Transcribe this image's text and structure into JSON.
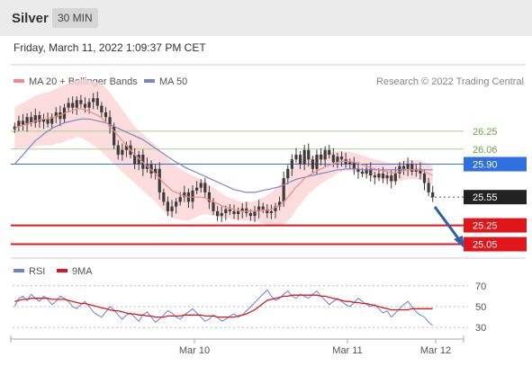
{
  "header": {
    "title": "Silver",
    "interval": "30 MIN"
  },
  "timestamp": "Friday, March 11, 2022 1:09:37 PM CET",
  "credit": "Research © 2022 Trading Central",
  "colors": {
    "candle": "#3c3c3c",
    "ma20": "#f08a8a",
    "bollinger": "#fbd3d3",
    "ma50": "#7a86c8",
    "resistance": "#a8d08a",
    "pivot": "#2f6fe0",
    "support": "#e0161b",
    "last": "#222222",
    "arrow": "#2f5fa8",
    "rsi": "#6a82d6",
    "nine_ma": "#e0161b"
  },
  "chart_data": [
    {
      "type": "candlestick",
      "legend": [
        {
          "key": "ma20",
          "label": "MA 20 + Bollinger Bands"
        },
        {
          "key": "ma50",
          "label": "MA 50"
        }
      ],
      "legend_position": "top-left",
      "ylim": [
        24.95,
        26.65
      ],
      "x_labels": [
        "Mar 10",
        "Mar 11",
        "Mar 12"
      ],
      "levels": [
        {
          "label": "26.25",
          "value": 26.25,
          "type": "resistance"
        },
        {
          "label": "26.06",
          "value": 26.06,
          "type": "resistance"
        },
        {
          "label": "25.90",
          "value": 25.9,
          "type": "pivot"
        },
        {
          "label": "25.55",
          "value": 25.55,
          "type": "last"
        },
        {
          "label": "25.25",
          "value": 25.25,
          "type": "support"
        },
        {
          "label": "25.05",
          "value": 25.05,
          "type": "support"
        }
      ],
      "close": [
        26.3,
        26.36,
        26.32,
        26.4,
        26.34,
        26.42,
        26.35,
        26.38,
        26.33,
        26.4,
        26.45,
        26.38,
        26.5,
        26.55,
        26.5,
        26.58,
        26.54,
        26.5,
        26.56,
        26.6,
        26.52,
        26.45,
        26.4,
        26.3,
        26.1,
        26.0,
        26.05,
        26.1,
        26.0,
        25.9,
        26.0,
        25.85,
        25.9,
        25.8,
        25.85,
        25.6,
        25.5,
        25.4,
        25.45,
        25.5,
        25.55,
        25.6,
        25.5,
        25.62,
        25.65,
        25.7,
        25.6,
        25.5,
        25.4,
        25.35,
        25.38,
        25.42,
        25.4,
        25.37,
        25.4,
        25.43,
        25.38,
        25.35,
        25.4,
        25.45,
        25.42,
        25.38,
        25.4,
        25.45,
        25.5,
        25.75,
        25.85,
        25.95,
        26.0,
        25.9,
        26.05,
        25.95,
        25.85,
        26.0,
        25.95,
        26.05,
        26.0,
        25.92,
        25.98,
        25.95,
        25.9,
        25.92,
        25.85,
        25.82,
        25.8,
        25.85,
        25.78,
        25.76,
        25.8,
        25.75,
        25.78,
        25.72,
        25.8,
        25.88,
        25.85,
        25.9,
        25.82,
        25.85,
        25.8,
        25.7,
        25.6,
        25.55
      ],
      "ma20": [
        26.28,
        26.3,
        26.31,
        26.33,
        26.34,
        26.36,
        26.37,
        26.38,
        26.38,
        26.39,
        26.41,
        26.42,
        26.44,
        26.46,
        26.47,
        26.49,
        26.49,
        26.48,
        26.46,
        26.44,
        26.42,
        26.39,
        26.35,
        26.3,
        26.25,
        26.2,
        26.15,
        26.1,
        26.05,
        26.0,
        25.96,
        25.92,
        25.88,
        25.84,
        25.8,
        25.75,
        25.7,
        25.66,
        25.62,
        25.6,
        25.58,
        25.56,
        25.55,
        25.55,
        25.55,
        25.55,
        25.54,
        25.52,
        25.5,
        25.48,
        25.46,
        25.44,
        25.43,
        25.42,
        25.41,
        25.4,
        25.4,
        25.4,
        25.4,
        25.41,
        25.41,
        25.41,
        25.42,
        25.44,
        25.46,
        25.5,
        25.55,
        25.6,
        25.66,
        25.7,
        25.75,
        25.78,
        25.8,
        25.83,
        25.85,
        25.87,
        25.89,
        25.9,
        25.92,
        25.93,
        25.93,
        25.93,
        25.92,
        25.91,
        25.89,
        25.88,
        25.86,
        25.85,
        25.84,
        25.83,
        25.82,
        25.81,
        25.81,
        25.82,
        25.83,
        25.84,
        25.84,
        25.84,
        25.84,
        25.82,
        25.8,
        25.78
      ],
      "ma50": [
        25.9,
        25.95,
        26.0,
        26.05,
        26.1,
        26.15,
        26.18,
        26.22,
        26.25,
        26.28,
        26.3,
        26.32,
        26.34,
        26.35,
        26.36,
        26.37,
        26.38,
        26.38,
        26.38,
        26.37,
        26.36,
        26.35,
        26.34,
        26.32,
        26.3,
        26.28,
        26.26,
        26.24,
        26.22,
        26.2,
        26.18,
        26.16,
        26.13,
        26.1,
        26.07,
        26.04,
        26.01,
        25.98,
        25.95,
        25.92,
        25.9,
        25.87,
        25.85,
        25.83,
        25.81,
        25.79,
        25.77,
        25.75,
        25.73,
        25.71,
        25.69,
        25.67,
        25.65,
        25.63,
        25.62,
        25.61,
        25.6,
        25.6,
        25.6,
        25.61,
        25.62,
        25.63,
        25.64,
        25.65,
        25.66,
        25.68,
        25.7,
        25.72,
        25.74,
        25.75,
        25.76,
        25.77,
        25.78,
        25.79,
        25.8,
        25.81,
        25.82,
        25.83,
        25.84,
        25.84,
        25.85,
        25.85,
        25.85,
        25.85,
        25.84,
        25.84,
        25.84,
        25.84,
        25.84,
        25.84,
        25.84,
        25.84,
        25.84,
        25.84,
        25.84,
        25.84,
        25.84,
        25.84,
        25.84,
        25.84,
        25.84,
        25.84
      ],
      "band_width": [
        0.22,
        0.23,
        0.24,
        0.25,
        0.26,
        0.27,
        0.27,
        0.28,
        0.28,
        0.29,
        0.29,
        0.3,
        0.3,
        0.3,
        0.3,
        0.3,
        0.31,
        0.32,
        0.33,
        0.34,
        0.35,
        0.36,
        0.36,
        0.36,
        0.35,
        0.34,
        0.33,
        0.32,
        0.31,
        0.3,
        0.3,
        0.3,
        0.3,
        0.3,
        0.3,
        0.3,
        0.3,
        0.3,
        0.29,
        0.28,
        0.27,
        0.26,
        0.25,
        0.23,
        0.21,
        0.19,
        0.17,
        0.16,
        0.15,
        0.14,
        0.13,
        0.12,
        0.11,
        0.11,
        0.1,
        0.1,
        0.1,
        0.1,
        0.11,
        0.12,
        0.14,
        0.16,
        0.18,
        0.2,
        0.22,
        0.24,
        0.25,
        0.25,
        0.24,
        0.23,
        0.22,
        0.2,
        0.18,
        0.17,
        0.16,
        0.15,
        0.14,
        0.13,
        0.12,
        0.11,
        0.1,
        0.1,
        0.1,
        0.1,
        0.1,
        0.1,
        0.1,
        0.1,
        0.1,
        0.1,
        0.1,
        0.1,
        0.1,
        0.1,
        0.1,
        0.1,
        0.1,
        0.1,
        0.1,
        0.1,
        0.1,
        0.1
      ]
    },
    {
      "type": "line",
      "legend": [
        {
          "key": "rsi",
          "label": "RSI"
        },
        {
          "key": "nine_ma",
          "label": "9MA"
        }
      ],
      "legend_position": "top-left",
      "ylim": [
        25,
        75
      ],
      "yticks": [
        "70",
        "50",
        "30"
      ],
      "series": [
        {
          "name": "RSI",
          "values": [
            50,
            58,
            60,
            56,
            62,
            58,
            55,
            60,
            57,
            52,
            55,
            60,
            58,
            55,
            50,
            48,
            52,
            55,
            50,
            45,
            42,
            40,
            45,
            50,
            47,
            42,
            38,
            42,
            44,
            40,
            36,
            42,
            45,
            40,
            35,
            38,
            42,
            46,
            44,
            40,
            38,
            42,
            45,
            48,
            44,
            40,
            36,
            38,
            42,
            40,
            36,
            38,
            41,
            43,
            40,
            42,
            46,
            50,
            54,
            58,
            62,
            66,
            60,
            56,
            58,
            62,
            65,
            60,
            58,
            62,
            60,
            58,
            62,
            65,
            60,
            56,
            52,
            55,
            58,
            55,
            52,
            50,
            54,
            58,
            55,
            52,
            50,
            52,
            48,
            44,
            46,
            40,
            44,
            48,
            52,
            55,
            50,
            45,
            42,
            40,
            35,
            32
          ]
        },
        {
          "name": "9MA",
          "values": [
            55,
            56,
            57,
            57,
            58,
            58,
            58,
            58,
            58,
            57,
            57,
            57,
            57,
            56,
            55,
            54,
            53,
            53,
            52,
            51,
            50,
            49,
            48,
            47,
            46,
            46,
            45,
            44,
            43,
            43,
            42,
            42,
            41,
            41,
            40,
            40,
            40,
            41,
            41,
            41,
            41,
            42,
            42,
            42,
            42,
            42,
            41,
            41,
            41,
            40,
            40,
            40,
            40,
            40,
            41,
            42,
            43,
            45,
            47,
            50,
            53,
            56,
            57,
            58,
            59,
            60,
            60,
            61,
            61,
            61,
            61,
            61,
            61,
            61,
            60,
            60,
            59,
            58,
            57,
            56,
            55,
            55,
            54,
            54,
            53,
            53,
            52,
            51,
            50,
            49,
            48,
            47,
            47,
            47,
            47,
            47,
            48,
            48,
            48,
            48,
            48,
            48
          ]
        }
      ]
    }
  ]
}
